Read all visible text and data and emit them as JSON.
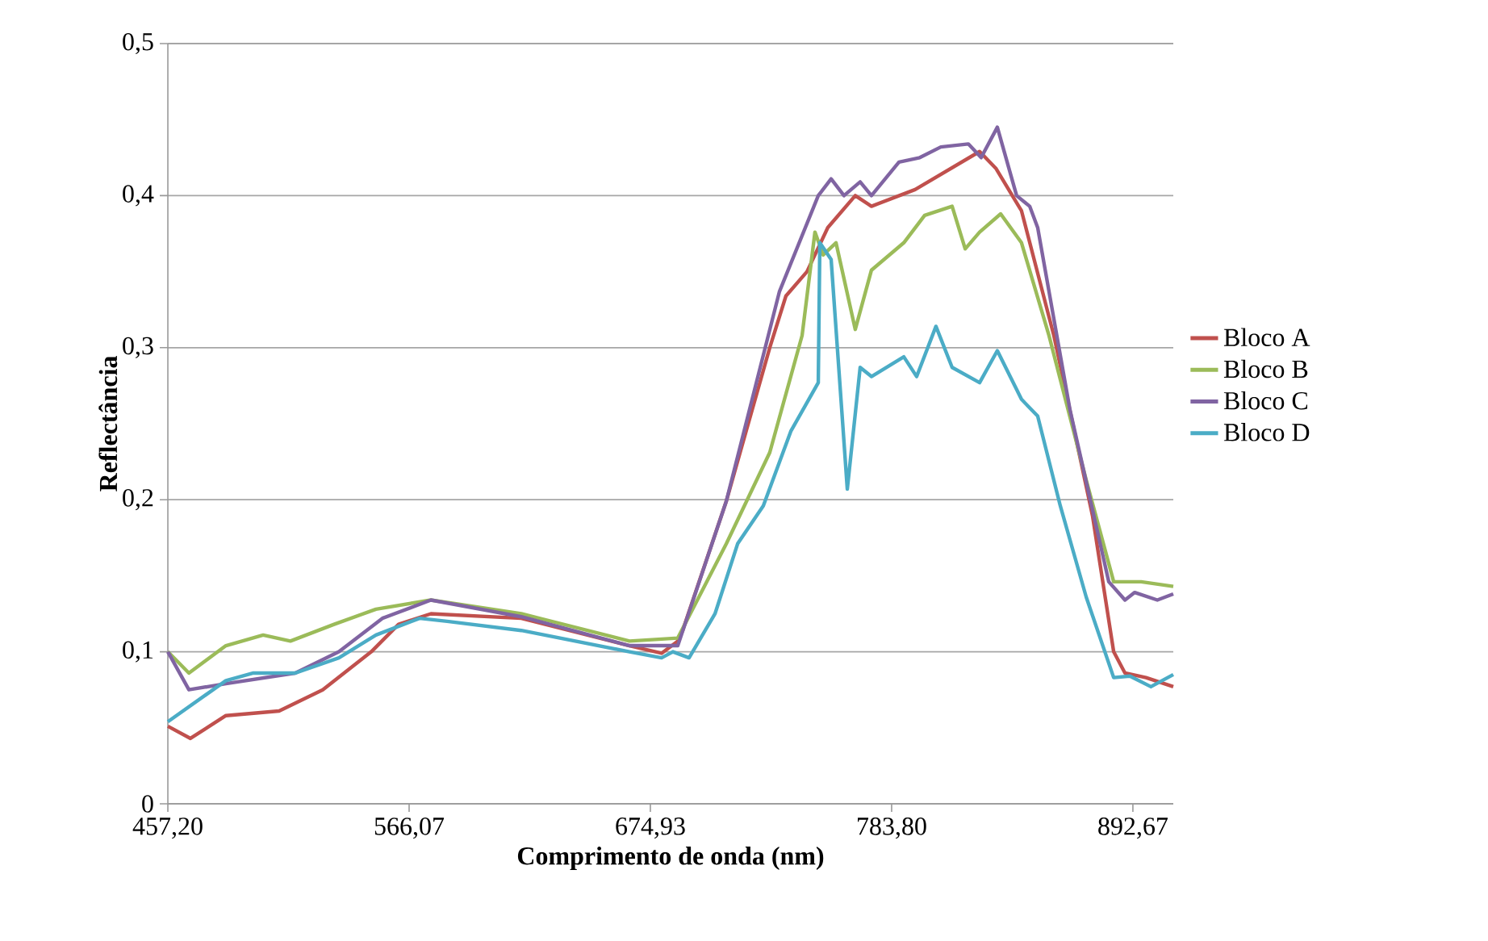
{
  "chart_data": {
    "type": "line",
    "xlabel": "Comprimento  de onda (nm)",
    "ylabel": "Reflectância",
    "xlim": [
      457.2,
      910.9
    ],
    "ylim": [
      0,
      0.5
    ],
    "xticks": [
      {
        "value": 457.2,
        "label": "457,20"
      },
      {
        "value": 566.07,
        "label": "566,07"
      },
      {
        "value": 674.93,
        "label": "674,93"
      },
      {
        "value": 783.8,
        "label": "783,80"
      },
      {
        "value": 892.67,
        "label": "892,67"
      }
    ],
    "yticks": [
      0,
      {
        "value": 0.1,
        "label": "0,1"
      },
      {
        "value": 0.2,
        "label": "0,2"
      },
      {
        "value": 0.3,
        "label": "0,3"
      },
      {
        "value": 0.4,
        "label": "0,4"
      },
      {
        "value": 0.5,
        "label": "0,5"
      }
    ],
    "grid": "y",
    "legend": "right",
    "marker": "none",
    "line_style": "solid",
    "series": [
      {
        "name": "Bloco A",
        "color": "#c0504d",
        "x": [
          457.2,
          467.4,
          483.4,
          507.4,
          527.1,
          549.0,
          561.3,
          575.9,
          616.7,
          665.5,
          680.0,
          687.3,
          689.5,
          709.2,
          728.8,
          736.1,
          745.6,
          755.0,
          767.4,
          774.7,
          794.4,
          823.5,
          830.8,
          842.4,
          857.0,
          874.5,
          884.0,
          889.1,
          898.6,
          910.9
        ],
        "values": [
          0.051,
          0.043,
          0.058,
          0.061,
          0.075,
          0.1,
          0.118,
          0.125,
          0.122,
          0.104,
          0.099,
          0.107,
          0.114,
          0.199,
          0.3,
          0.334,
          0.35,
          0.379,
          0.4,
          0.393,
          0.404,
          0.429,
          0.418,
          0.39,
          0.308,
          0.189,
          0.1,
          0.086,
          0.083,
          0.077
        ]
      },
      {
        "name": "Bloco B",
        "color": "#9bbb59",
        "x": [
          457.2,
          466.7,
          483.4,
          500.2,
          512.5,
          532.2,
          551.1,
          575.9,
          616.7,
          665.5,
          687.3,
          709.2,
          728.8,
          743.4,
          749.2,
          752.9,
          758.7,
          767.4,
          774.7,
          789.3,
          798.7,
          811.1,
          817.0,
          823.5,
          833.0,
          842.4,
          854.8,
          871.6,
          884.0,
          896.4,
          910.9
        ],
        "values": [
          0.1,
          0.086,
          0.104,
          0.111,
          0.107,
          0.118,
          0.128,
          0.134,
          0.125,
          0.107,
          0.109,
          0.171,
          0.231,
          0.308,
          0.376,
          0.361,
          0.369,
          0.312,
          0.351,
          0.369,
          0.387,
          0.393,
          0.365,
          0.376,
          0.388,
          0.369,
          0.308,
          0.213,
          0.146,
          0.146,
          0.143
        ]
      },
      {
        "name": "Bloco C",
        "color": "#8064a2",
        "x": [
          457.2,
          466.7,
          483.4,
          514.7,
          534.4,
          554.0,
          575.9,
          616.7,
          665.5,
          687.3,
          709.2,
          733.2,
          750.7,
          756.5,
          762.3,
          769.6,
          774.7,
          787.1,
          796.5,
          806.0,
          818.4,
          824.2,
          831.5,
          840.2,
          846.1,
          849.7,
          864.3,
          881.8,
          889.1,
          893.5,
          903.7,
          910.9
        ],
        "values": [
          0.1,
          0.075,
          0.079,
          0.086,
          0.1,
          0.122,
          0.134,
          0.123,
          0.104,
          0.104,
          0.199,
          0.337,
          0.4,
          0.411,
          0.4,
          0.409,
          0.4,
          0.422,
          0.425,
          0.432,
          0.434,
          0.425,
          0.445,
          0.4,
          0.393,
          0.379,
          0.259,
          0.146,
          0.134,
          0.139,
          0.134,
          0.138
        ]
      },
      {
        "name": "Bloco D",
        "color": "#4bacc6",
        "x": [
          457.2,
          483.4,
          495.8,
          514.7,
          534.4,
          551.1,
          570.8,
          583.2,
          616.7,
          665.5,
          680.0,
          685.1,
          692.4,
          704.1,
          714.3,
          725.9,
          738.3,
          750.7,
          751.4,
          756.5,
          763.8,
          769.6,
          774.7,
          789.3,
          795.1,
          803.8,
          811.1,
          823.5,
          831.5,
          842.4,
          849.7,
          859.9,
          871.6,
          884.0,
          891.3,
          900.8,
          910.9
        ],
        "values": [
          0.054,
          0.081,
          0.086,
          0.086,
          0.096,
          0.111,
          0.122,
          0.12,
          0.114,
          0.1,
          0.096,
          0.1,
          0.096,
          0.125,
          0.171,
          0.196,
          0.245,
          0.277,
          0.369,
          0.358,
          0.207,
          0.287,
          0.281,
          0.294,
          0.281,
          0.314,
          0.287,
          0.277,
          0.298,
          0.266,
          0.255,
          0.196,
          0.136,
          0.083,
          0.084,
          0.077,
          0.085
        ]
      }
    ]
  }
}
